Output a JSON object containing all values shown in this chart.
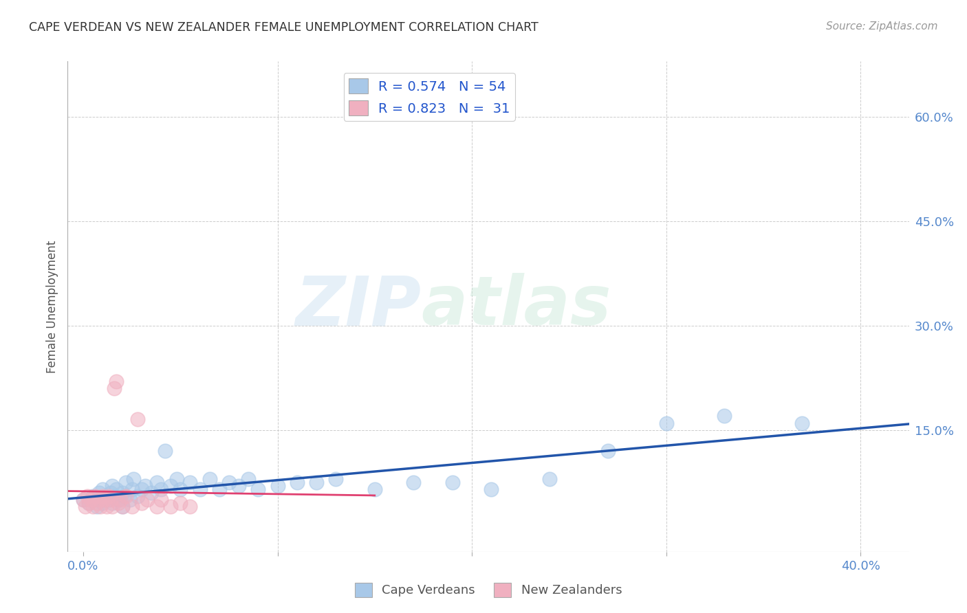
{
  "title": "CAPE VERDEAN VS NEW ZEALANDER FEMALE UNEMPLOYMENT CORRELATION CHART",
  "source": "Source: ZipAtlas.com",
  "ylabel_label": "Female Unemployment",
  "x_ticks": [
    0.0,
    0.1,
    0.2,
    0.3,
    0.4
  ],
  "x_tick_labels": [
    "0.0%",
    "",
    "",
    "",
    "40.0%"
  ],
  "y_ticks": [
    0.0,
    0.15,
    0.3,
    0.45,
    0.6
  ],
  "right_y_tick_labels": [
    "",
    "15.0%",
    "30.0%",
    "45.0%",
    "60.0%"
  ],
  "xlim": [
    -0.008,
    0.425
  ],
  "ylim": [
    -0.025,
    0.68
  ],
  "background_color": "#ffffff",
  "grid_color": "#cccccc",
  "watermark_zip": "ZIP",
  "watermark_atlas": "atlas",
  "cape_verdean_color": "#a8c8e8",
  "new_zealander_color": "#f0b0c0",
  "cape_verdean_line_color": "#2255aa",
  "new_zealander_line_color": "#e04070",
  "title_color": "#333333",
  "source_color": "#999999",
  "tick_color": "#5588cc",
  "ylabel_color": "#555555",
  "legend_label_color": "#2255cc",
  "bottom_legend_color": "#555555",
  "cape_verdean_x": [
    0.0,
    0.003,
    0.005,
    0.007,
    0.008,
    0.009,
    0.01,
    0.01,
    0.012,
    0.013,
    0.014,
    0.015,
    0.015,
    0.016,
    0.017,
    0.018,
    0.02,
    0.02,
    0.021,
    0.022,
    0.024,
    0.025,
    0.026,
    0.028,
    0.03,
    0.032,
    0.035,
    0.038,
    0.04,
    0.042,
    0.045,
    0.048,
    0.05,
    0.055,
    0.06,
    0.065,
    0.07,
    0.075,
    0.08,
    0.085,
    0.09,
    0.1,
    0.11,
    0.12,
    0.13,
    0.15,
    0.17,
    0.19,
    0.21,
    0.24,
    0.27,
    0.3,
    0.33,
    0.37
  ],
  "cape_verdean_y": [
    0.05,
    0.045,
    0.055,
    0.04,
    0.06,
    0.05,
    0.045,
    0.065,
    0.055,
    0.05,
    0.06,
    0.045,
    0.07,
    0.055,
    0.065,
    0.05,
    0.04,
    0.06,
    0.055,
    0.075,
    0.05,
    0.065,
    0.08,
    0.055,
    0.065,
    0.07,
    0.06,
    0.075,
    0.065,
    0.12,
    0.07,
    0.08,
    0.065,
    0.075,
    0.065,
    0.08,
    0.065,
    0.075,
    0.07,
    0.08,
    0.065,
    0.07,
    0.075,
    0.075,
    0.08,
    0.065,
    0.075,
    0.075,
    0.065,
    0.08,
    0.12,
    0.16,
    0.17,
    0.16
  ],
  "new_zealander_x": [
    0.0,
    0.001,
    0.002,
    0.003,
    0.004,
    0.005,
    0.006,
    0.007,
    0.008,
    0.009,
    0.01,
    0.011,
    0.012,
    0.013,
    0.014,
    0.015,
    0.016,
    0.017,
    0.018,
    0.019,
    0.02,
    0.022,
    0.025,
    0.028,
    0.03,
    0.033,
    0.038,
    0.04,
    0.045,
    0.05,
    0.055
  ],
  "new_zealander_y": [
    0.05,
    0.04,
    0.055,
    0.045,
    0.05,
    0.04,
    0.055,
    0.045,
    0.05,
    0.04,
    0.055,
    0.05,
    0.04,
    0.055,
    0.05,
    0.04,
    0.21,
    0.22,
    0.045,
    0.05,
    0.04,
    0.055,
    0.04,
    0.165,
    0.045,
    0.05,
    0.04,
    0.05,
    0.04,
    0.045,
    0.04
  ]
}
